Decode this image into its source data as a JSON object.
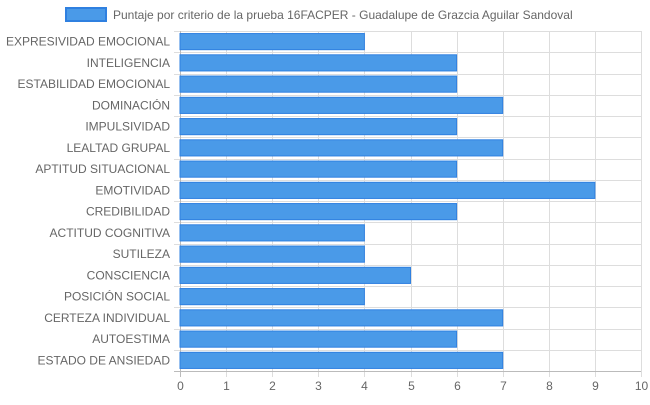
{
  "chart_data": {
    "type": "bar",
    "orientation": "horizontal",
    "legend_position": "top",
    "grid": true,
    "xlim": [
      0,
      10
    ],
    "x_ticks": [
      "0",
      "1",
      "2",
      "3",
      "4",
      "5",
      "6",
      "7",
      "8",
      "9",
      "10"
    ],
    "categories": [
      "EXPRESIVIDAD EMOCIONAL",
      "INTELIGENCIA",
      "ESTABILIDAD EMOCIONAL",
      "DOMINACIÓN",
      "IMPULSIVIDAD",
      "LEALTAD GRUPAL",
      "APTITUD SITUACIONAL",
      "EMOTIVIDAD",
      "CREDIBILIDAD",
      "ACTITUD COGNITIVA",
      "SUTILEZA",
      "CONSCIENCIA",
      "POSICIÓN SOCIAL",
      "CERTEZA INDIVIDUAL",
      "AUTOESTIMA",
      "ESTADO DE ANSIEDAD"
    ],
    "series": [
      {
        "name": "Puntaje por criterio de la prueba 16FACPER - Guadalupe de Grazcia Aguilar Sandoval",
        "values": [
          4,
          6,
          6,
          7,
          6,
          7,
          6,
          9,
          6,
          4,
          4,
          5,
          4,
          7,
          6,
          7
        ],
        "color": "#4a9ae8",
        "border_color": "#2f80e0"
      }
    ],
    "colors": {
      "grid": "#dddddd",
      "axis_text": "#666666"
    }
  }
}
